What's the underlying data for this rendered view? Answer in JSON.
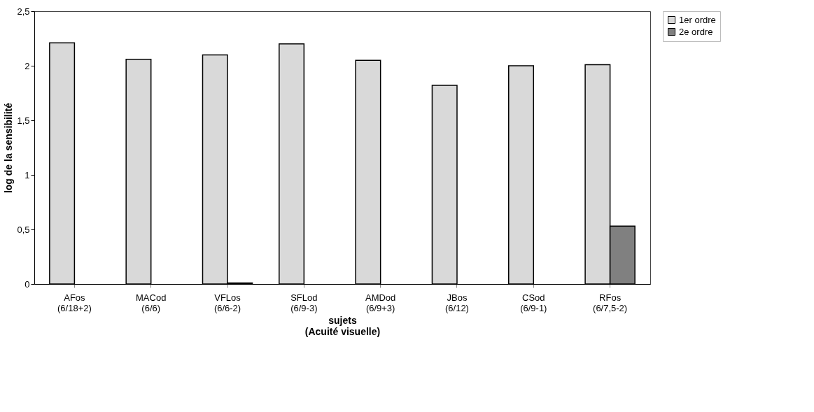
{
  "chart_data": {
    "type": "bar",
    "xlabel": "sujets\n(Acuité visuelle)",
    "ylabel": "log de la sensibilité",
    "categories": [
      "AFos\n(6/18+2)",
      "MACod\n(6/6)",
      "VFLos\n(6/6-2)",
      "SFLod\n(6/9-3)",
      "AMDod\n(6/9+3)",
      "JBos\n(6/12)",
      "CSod\n(6/9-1)",
      "RFos\n(6/7,5-2)"
    ],
    "series": [
      {
        "name": "1er ordre",
        "color": "#d9d9d9",
        "values": [
          2.21,
          2.06,
          2.1,
          2.2,
          2.05,
          1.82,
          2.0,
          2.01
        ]
      },
      {
        "name": "2e ordre",
        "color": "#808080",
        "values": [
          null,
          null,
          0.01,
          null,
          null,
          null,
          null,
          0.53
        ]
      }
    ],
    "ylim": [
      0,
      2.5
    ],
    "yticks": [
      {
        "value": 0,
        "label": "0"
      },
      {
        "value": 0.5,
        "label": "0,5"
      },
      {
        "value": 1,
        "label": "1"
      },
      {
        "value": 1.5,
        "label": "1,5"
      },
      {
        "value": 2,
        "label": "2"
      },
      {
        "value": 2.5,
        "label": "2,5"
      }
    ],
    "grid": false,
    "legend": "right"
  }
}
